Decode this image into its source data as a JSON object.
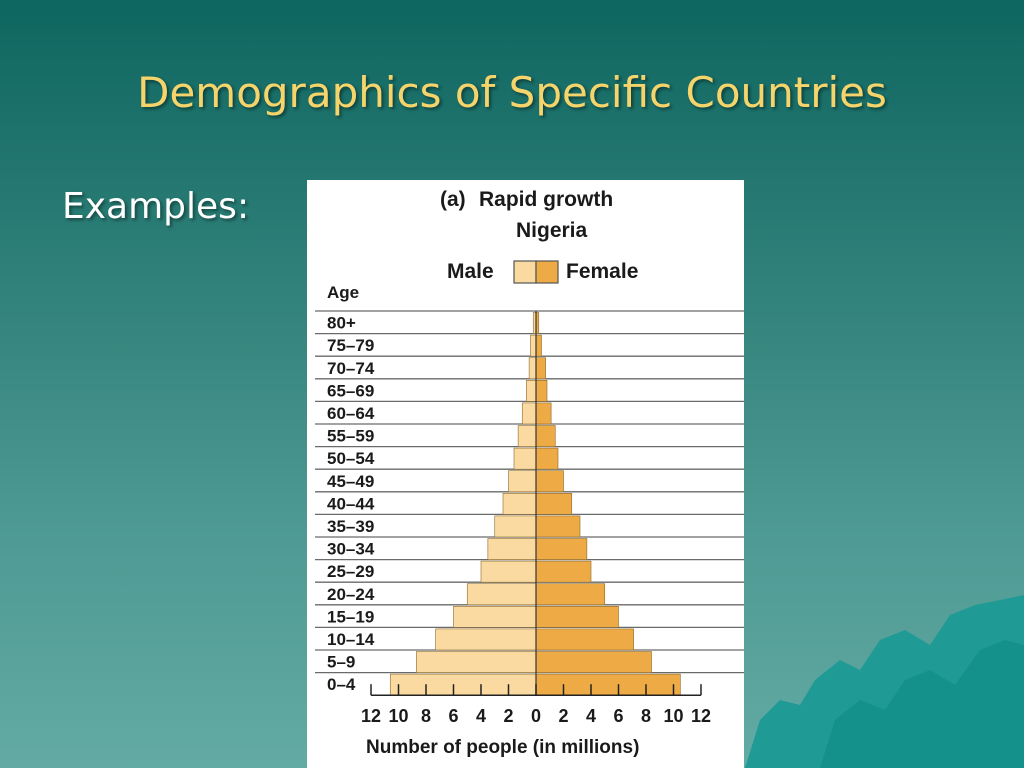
{
  "slide": {
    "title": "Demographics of Specific Countries",
    "bullet": "Examples:"
  },
  "colors": {
    "title": "#f5d46c",
    "male_bar": "#fadaa0",
    "female_bar": "#eeaa44",
    "bar_edge": "#8a6a30"
  },
  "chart_data": {
    "type": "bar",
    "orientation": "horizontal",
    "style": "population-pyramid",
    "panel_label": "(a)",
    "title": "Rapid growth",
    "subtitle": "Nigeria",
    "legend": {
      "male": "Male",
      "female": "Female"
    },
    "ylabel": "Age",
    "xlabel": "Number of people (in millions)",
    "xlim": [
      -12,
      12
    ],
    "x_tick_labels": [
      "12",
      "10",
      "8",
      "6",
      "4",
      "2",
      "0",
      "2",
      "4",
      "6",
      "8",
      "10",
      "12"
    ],
    "categories": [
      "80+",
      "75–79",
      "70–74",
      "65–69",
      "60–64",
      "55–59",
      "50–54",
      "45–49",
      "40–44",
      "35–39",
      "30–34",
      "25–29",
      "20–24",
      "15–19",
      "10–14",
      "5–9",
      "0–4"
    ],
    "series": [
      {
        "name": "Male",
        "values": [
          0.2,
          0.4,
          0.5,
          0.7,
          1.0,
          1.3,
          1.6,
          2.0,
          2.4,
          3.0,
          3.5,
          4.0,
          5.0,
          6.0,
          7.3,
          8.7,
          10.6
        ]
      },
      {
        "name": "Female",
        "values": [
          0.2,
          0.4,
          0.7,
          0.8,
          1.1,
          1.4,
          1.6,
          2.0,
          2.6,
          3.2,
          3.7,
          4.0,
          5.0,
          6.0,
          7.1,
          8.4,
          10.5
        ]
      }
    ],
    "grid": true
  }
}
